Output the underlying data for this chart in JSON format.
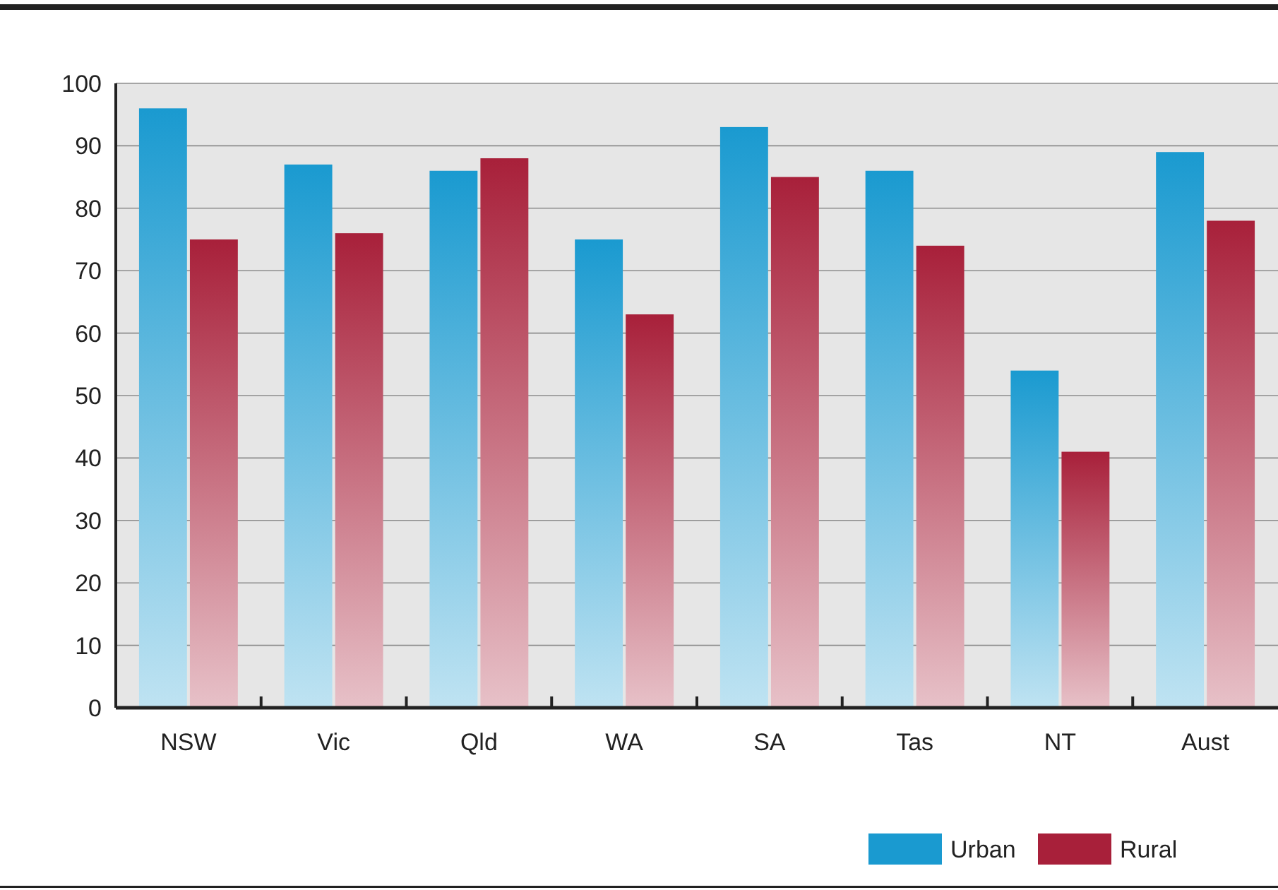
{
  "chart_data": {
    "type": "bar",
    "categories": [
      "NSW",
      "Vic",
      "Qld",
      "WA",
      "SA",
      "Tas",
      "NT",
      "Aust"
    ],
    "series": [
      {
        "name": "Urban",
        "color": "#1a9ad0",
        "values": [
          96,
          87,
          86,
          75,
          93,
          86,
          54,
          89
        ]
      },
      {
        "name": "Rural",
        "color": "#a8203a",
        "values": [
          75,
          76,
          88,
          63,
          85,
          74,
          41,
          78
        ]
      }
    ],
    "ylim": [
      0,
      100
    ],
    "yticks": [
      0,
      10,
      20,
      30,
      40,
      50,
      60,
      70,
      80,
      90,
      100
    ],
    "grid": "y",
    "legend": "bottom right"
  }
}
